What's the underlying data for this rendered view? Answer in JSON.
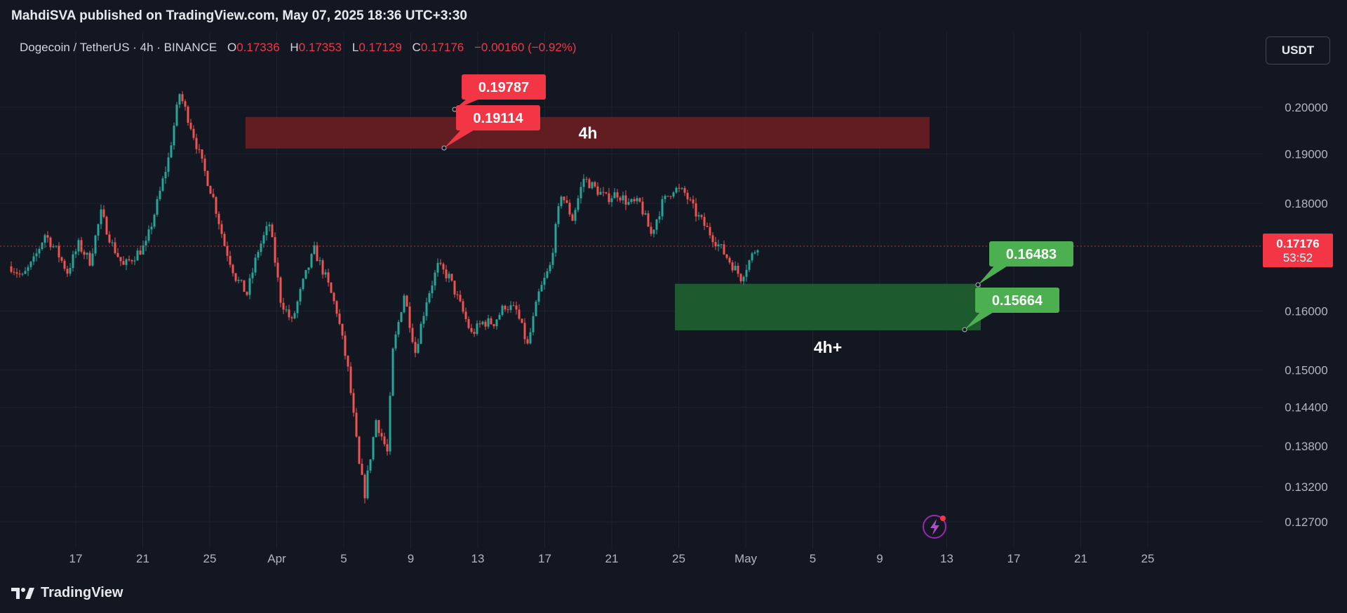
{
  "header": {
    "publish_line": "MahdiSVA published on TradingView.com, May 07, 2025 18:36 UTC+3:30"
  },
  "legend": {
    "symbol": "Dogecoin / TetherUS · 4h · BINANCE",
    "o_label": "O",
    "o_value": "0.17336",
    "h_label": "H",
    "h_value": "0.17353",
    "l_label": "L",
    "l_value": "0.17129",
    "c_label": "C",
    "c_value": "0.17176",
    "change": "−0.00160 (−0.92%)"
  },
  "currency_button": "USDT",
  "brand": "TradingView",
  "colors": {
    "background": "#131722",
    "up": "#26a69a",
    "down": "#ef5350",
    "supply_zone": "#6b1e22",
    "demand_zone": "#1e5e2e",
    "red_label": "#f23645",
    "green_label": "#4caf50",
    "grid": "#1e222d"
  },
  "icons": {
    "lightning": "lightning-icon",
    "logo": "tradingview-logo-icon"
  },
  "chart_data": {
    "type": "candlestick",
    "timeframe": "4h",
    "price_axis": {
      "ticks": [
        "0.20000",
        "0.19000",
        "0.18000",
        "0.16000",
        "0.15000",
        "0.14400",
        "0.13800",
        "0.13200",
        "0.12700"
      ],
      "scale": "log",
      "ylim": [
        0.1245,
        0.2115
      ]
    },
    "time_axis": {
      "ticks": [
        "17",
        "21",
        "25",
        "Apr",
        "5",
        "9",
        "13",
        "17",
        "21",
        "25",
        "May",
        "5",
        "9",
        "13",
        "17",
        "21",
        "25"
      ]
    },
    "current_price": {
      "value": 0.17176,
      "label": "0.17176",
      "countdown": "53:52"
    },
    "series": {
      "name": "Dogecoin / TetherUS",
      "path": [
        [
          0,
          0.168
        ],
        [
          4,
          0.166
        ],
        [
          8,
          0.169
        ],
        [
          12,
          0.174
        ],
        [
          16,
          0.171
        ],
        [
          20,
          0.167
        ],
        [
          24,
          0.172
        ],
        [
          28,
          0.169
        ],
        [
          32,
          0.178
        ],
        [
          36,
          0.172
        ],
        [
          40,
          0.168
        ],
        [
          44,
          0.17
        ],
        [
          48,
          0.172
        ],
        [
          52,
          0.18
        ],
        [
          56,
          0.189
        ],
        [
          60,
          0.203
        ],
        [
          64,
          0.196
        ],
        [
          68,
          0.188
        ],
        [
          72,
          0.181
        ],
        [
          76,
          0.172
        ],
        [
          80,
          0.166
        ],
        [
          84,
          0.163
        ],
        [
          88,
          0.171
        ],
        [
          92,
          0.176
        ],
        [
          96,
          0.162
        ],
        [
          100,
          0.158
        ],
        [
          104,
          0.165
        ],
        [
          108,
          0.171
        ],
        [
          112,
          0.166
        ],
        [
          116,
          0.16
        ],
        [
          120,
          0.15
        ],
        [
          124,
          0.135
        ],
        [
          126,
          0.131
        ],
        [
          130,
          0.142
        ],
        [
          134,
          0.137
        ],
        [
          136,
          0.153
        ],
        [
          140,
          0.163
        ],
        [
          144,
          0.153
        ],
        [
          148,
          0.162
        ],
        [
          152,
          0.168
        ],
        [
          156,
          0.166
        ],
        [
          160,
          0.161
        ],
        [
          164,
          0.156
        ],
        [
          168,
          0.158
        ],
        [
          172,
          0.158
        ],
        [
          176,
          0.161
        ],
        [
          180,
          0.16
        ],
        [
          184,
          0.154
        ],
        [
          188,
          0.163
        ],
        [
          192,
          0.168
        ],
        [
          196,
          0.182
        ],
        [
          200,
          0.177
        ],
        [
          204,
          0.185
        ],
        [
          208,
          0.183
        ],
        [
          212,
          0.181
        ],
        [
          216,
          0.182
        ],
        [
          220,
          0.18
        ],
        [
          224,
          0.18
        ],
        [
          228,
          0.174
        ],
        [
          232,
          0.18
        ],
        [
          236,
          0.183
        ],
        [
          240,
          0.182
        ],
        [
          244,
          0.178
        ],
        [
          248,
          0.175
        ],
        [
          252,
          0.172
        ],
        [
          256,
          0.169
        ],
        [
          260,
          0.166
        ],
        [
          264,
          0.17
        ],
        [
          266,
          0.172
        ]
      ],
      "path_note_units": "x = 4h bar index"
    },
    "zones": [
      {
        "name": "4h",
        "type": "supply",
        "top": 0.19787,
        "bottom": 0.19114
      },
      {
        "name": "4h+",
        "type": "demand",
        "top": 0.16483,
        "bottom": 0.15664
      }
    ],
    "price_labels": [
      {
        "text": "0.19787",
        "color": "red"
      },
      {
        "text": "0.19114",
        "color": "red"
      },
      {
        "text": "0.16483",
        "color": "green"
      },
      {
        "text": "0.15664",
        "color": "green"
      }
    ],
    "grid": true
  }
}
